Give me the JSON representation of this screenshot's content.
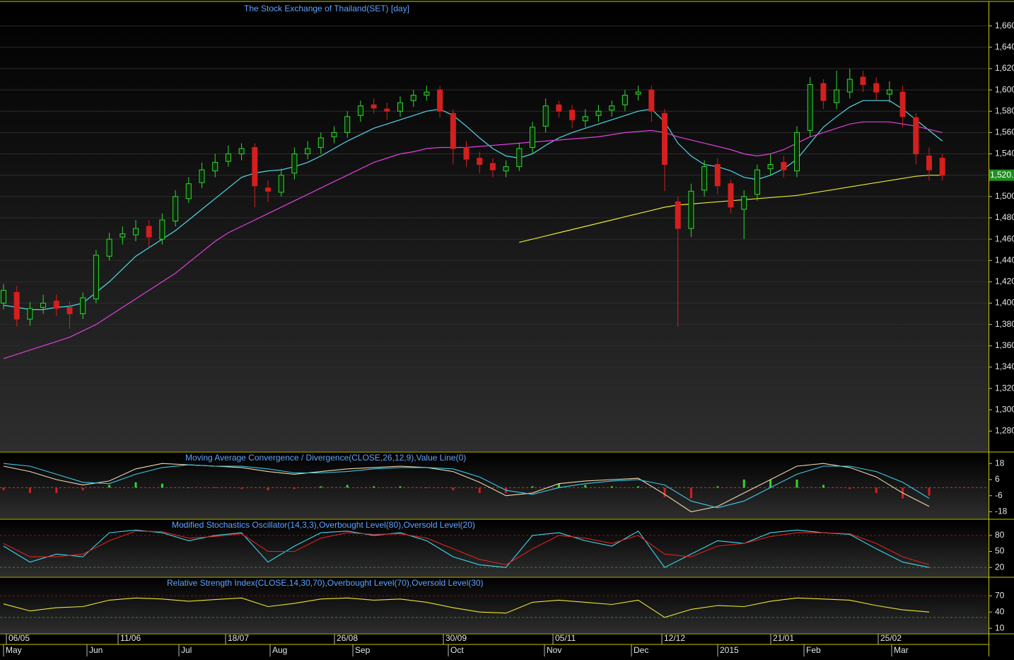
{
  "chart_data": [
    {
      "type": "candlestick",
      "title": "The Stock Exchange of Thailand(SET) [day]",
      "open": [
        1400,
        1410,
        1385,
        1396,
        1402,
        1396,
        1390,
        1404,
        1444,
        1462,
        1464,
        1472,
        1460,
        1477,
        1498,
        1513,
        1524,
        1533,
        1540,
        1546,
        1508,
        1504,
        1522,
        1540,
        1546,
        1556,
        1560,
        1576,
        1586,
        1582,
        1580,
        1590,
        1595,
        1600,
        1578,
        1546,
        1536,
        1531,
        1524,
        1528,
        1546,
        1566,
        1586,
        1581,
        1571,
        1576,
        1581,
        1586,
        1596,
        1600,
        1578,
        1495,
        1470,
        1506,
        1530,
        1512,
        1488,
        1502,
        1526,
        1532,
        1524,
        1562,
        1606,
        1588,
        1598,
        1612,
        1606,
        1596,
        1598,
        1574,
        1538,
        1536
      ],
      "high": [
        1418,
        1416,
        1401,
        1408,
        1408,
        1402,
        1410,
        1450,
        1466,
        1472,
        1478,
        1478,
        1484,
        1506,
        1518,
        1532,
        1540,
        1548,
        1550,
        1550,
        1515,
        1526,
        1546,
        1552,
        1560,
        1566,
        1580,
        1590,
        1592,
        1588,
        1594,
        1600,
        1604,
        1604,
        1582,
        1552,
        1542,
        1536,
        1534,
        1550,
        1570,
        1592,
        1590,
        1586,
        1582,
        1586,
        1590,
        1600,
        1604,
        1604,
        1582,
        1500,
        1512,
        1534,
        1536,
        1516,
        1506,
        1530,
        1540,
        1538,
        1566,
        1612,
        1610,
        1618,
        1620,
        1618,
        1612,
        1608,
        1604,
        1578,
        1546,
        1540
      ],
      "low": [
        1394,
        1378,
        1379,
        1390,
        1388,
        1376,
        1385,
        1400,
        1440,
        1455,
        1458,
        1452,
        1455,
        1472,
        1494,
        1508,
        1518,
        1528,
        1534,
        1490,
        1495,
        1500,
        1516,
        1535,
        1540,
        1550,
        1555,
        1570,
        1578,
        1572,
        1575,
        1584,
        1590,
        1574,
        1530,
        1528,
        1522,
        1518,
        1518,
        1524,
        1540,
        1560,
        1574,
        1564,
        1565,
        1570,
        1575,
        1580,
        1590,
        1570,
        1505,
        1378,
        1462,
        1500,
        1502,
        1484,
        1460,
        1496,
        1520,
        1518,
        1518,
        1556,
        1582,
        1582,
        1592,
        1598,
        1590,
        1588,
        1565,
        1530,
        1515,
        1515
      ],
      "close": [
        1412,
        1385,
        1395,
        1400,
        1395,
        1390,
        1405,
        1445,
        1460,
        1465,
        1470,
        1462,
        1478,
        1500,
        1512,
        1525,
        1532,
        1540,
        1545,
        1510,
        1505,
        1520,
        1540,
        1545,
        1555,
        1560,
        1575,
        1585,
        1583,
        1580,
        1588,
        1595,
        1598,
        1580,
        1545,
        1535,
        1530,
        1525,
        1528,
        1545,
        1565,
        1585,
        1580,
        1572,
        1575,
        1580,
        1585,
        1595,
        1598,
        1580,
        1530,
        1470,
        1505,
        1528,
        1510,
        1490,
        1500,
        1525,
        1530,
        1525,
        1560,
        1605,
        1590,
        1600,
        1610,
        1605,
        1598,
        1600,
        1575,
        1540,
        1525,
        1520
      ],
      "up_color": "#33d633",
      "down_color": "#d41f1f",
      "moving_averages": [
        {
          "color": "#4fd8e8",
          "values": [
            1398,
            1396,
            1394,
            1394,
            1396,
            1397,
            1400,
            1410,
            1420,
            1432,
            1444,
            1452,
            1460,
            1468,
            1478,
            1488,
            1498,
            1508,
            1518,
            1522,
            1524,
            1525,
            1528,
            1532,
            1538,
            1545,
            1552,
            1558,
            1564,
            1568,
            1572,
            1576,
            1580,
            1582,
            1576,
            1566,
            1555,
            1545,
            1538,
            1536,
            1540,
            1548,
            1555,
            1560,
            1564,
            1568,
            1572,
            1576,
            1580,
            1582,
            1570,
            1550,
            1538,
            1530,
            1528,
            1524,
            1518,
            1516,
            1520,
            1526,
            1535,
            1550,
            1565,
            1575,
            1584,
            1590,
            1590,
            1590,
            1582,
            1572,
            1562,
            1552
          ]
        },
        {
          "color": "#e040e0",
          "values": [
            1348,
            1352,
            1356,
            1360,
            1364,
            1368,
            1374,
            1380,
            1388,
            1396,
            1404,
            1412,
            1420,
            1428,
            1438,
            1448,
            1458,
            1466,
            1472,
            1478,
            1484,
            1490,
            1496,
            1502,
            1508,
            1514,
            1520,
            1526,
            1532,
            1536,
            1540,
            1542,
            1545,
            1546,
            1546,
            1546,
            1547,
            1548,
            1549,
            1550,
            1551,
            1552,
            1553,
            1554,
            1555,
            1556,
            1558,
            1560,
            1561,
            1562,
            1560,
            1556,
            1553,
            1550,
            1547,
            1544,
            1540,
            1538,
            1540,
            1544,
            1550,
            1556,
            1560,
            1564,
            1568,
            1570,
            1570,
            1570,
            1568,
            1566,
            1563,
            1560
          ]
        },
        {
          "color": "#e8e830",
          "values": [
            null,
            null,
            null,
            null,
            null,
            null,
            null,
            null,
            null,
            null,
            null,
            null,
            null,
            null,
            null,
            null,
            null,
            null,
            null,
            null,
            null,
            null,
            null,
            null,
            null,
            null,
            null,
            null,
            null,
            null,
            null,
            null,
            null,
            null,
            null,
            null,
            null,
            null,
            null,
            1457,
            1460,
            1463,
            1466,
            1469,
            1472,
            1475,
            1478,
            1481,
            1484,
            1487,
            1490,
            1492,
            1493,
            1494,
            1495,
            1496,
            1497,
            1498,
            1499,
            1500,
            1501,
            1503,
            1505,
            1507,
            1509,
            1511,
            1513,
            1515,
            1517,
            1519,
            1520,
            1520
          ]
        }
      ],
      "last_price": {
        "value": 1520,
        "label": "1,520."
      },
      "ylim": [
        1261,
        1683
      ],
      "yticks": [
        {
          "value": 1280,
          "label": "1,280"
        },
        {
          "value": 1300,
          "label": "1,300"
        },
        {
          "value": 1320,
          "label": "1,320"
        },
        {
          "value": 1340,
          "label": "1,340"
        },
        {
          "value": 1360,
          "label": "1,360"
        },
        {
          "value": 1380,
          "label": "1,380"
        },
        {
          "value": 1400,
          "label": "1,400"
        },
        {
          "value": 1420,
          "label": "1,420"
        },
        {
          "value": 1440,
          "label": "1,440"
        },
        {
          "value": 1460,
          "label": "1,460"
        },
        {
          "value": 1480,
          "label": "1,480"
        },
        {
          "value": 1500,
          "label": "1,500"
        },
        {
          "value": 1520,
          "label": "1,520"
        },
        {
          "value": 1540,
          "label": "1,540"
        },
        {
          "value": 1560,
          "label": "1,560"
        },
        {
          "value": 1580,
          "label": "1,580"
        },
        {
          "value": 1600,
          "label": "1,600"
        },
        {
          "value": 1620,
          "label": "1,620"
        },
        {
          "value": 1640,
          "label": "1,640"
        },
        {
          "value": 1660,
          "label": "1,660"
        }
      ],
      "grid": true
    },
    {
      "type": "macd",
      "title": "Moving Average Convergence / Divergence(CLOSE,26,12,9),Value Line(0)",
      "series": [
        {
          "color": "#f0d8b0",
          "values": [
            16,
            12,
            6,
            2,
            5,
            14,
            18,
            17,
            16,
            15,
            12,
            10,
            12,
            14,
            15,
            16,
            15,
            12,
            4,
            -6,
            -4,
            3,
            5,
            6,
            7,
            -5,
            -18,
            -14,
            -4,
            6,
            16,
            18,
            15,
            8,
            -4,
            -14
          ]
        },
        {
          "color": "#3cc8e8",
          "values": [
            18,
            16,
            10,
            4,
            3,
            10,
            15,
            17,
            16,
            16,
            14,
            11,
            11,
            12,
            14,
            15,
            15,
            14,
            8,
            -2,
            -5,
            0,
            3,
            5,
            6,
            2,
            -10,
            -15,
            -10,
            0,
            10,
            16,
            16,
            12,
            4,
            -8
          ]
        }
      ],
      "histogram": {
        "up_color": "#33d633",
        "down_color": "#d41f1f",
        "values": [
          -2,
          -4,
          -4,
          -2,
          2,
          4,
          3,
          0,
          0,
          -1,
          -2,
          -1,
          1,
          2,
          1,
          1,
          0,
          -2,
          -4,
          -4,
          1,
          3,
          2,
          1,
          1,
          -7,
          -8,
          1,
          6,
          6,
          6,
          2,
          -1,
          -4,
          -8,
          -6
        ]
      },
      "levels": [
        0
      ],
      "ylim": [
        -23,
        26
      ],
      "yticks": [
        18,
        6,
        -6,
        -18
      ]
    },
    {
      "type": "oscillator",
      "title": "Modified Stochastics Oscillator(14,3,3),Overbought Level(80),Oversold Level(20)",
      "series": [
        {
          "color": "#3cd8f0",
          "values": [
            60,
            30,
            45,
            40,
            85,
            90,
            85,
            70,
            80,
            85,
            30,
            60,
            85,
            88,
            80,
            85,
            70,
            40,
            25,
            20,
            80,
            85,
            70,
            60,
            88,
            20,
            45,
            70,
            65,
            85,
            90,
            85,
            82,
            55,
            30,
            20
          ]
        },
        {
          "color": "#e02020",
          "values": [
            65,
            40,
            40,
            45,
            70,
            88,
            87,
            75,
            78,
            83,
            50,
            50,
            75,
            85,
            82,
            83,
            75,
            55,
            35,
            25,
            55,
            80,
            75,
            65,
            80,
            45,
            40,
            60,
            65,
            78,
            85,
            85,
            83,
            65,
            40,
            25
          ]
        }
      ],
      "levels": [
        80,
        20
      ],
      "ylim": [
        3,
        109
      ],
      "yticks": [
        80,
        50,
        20
      ]
    },
    {
      "type": "oscillator",
      "title": "Relative Strength Index(CLOSE,14,30,70),Overbought Level(70),Oversold Level(30)",
      "series": [
        {
          "color": "#e8e830",
          "values": [
            55,
            42,
            48,
            50,
            62,
            66,
            64,
            60,
            63,
            66,
            50,
            56,
            64,
            66,
            62,
            64,
            58,
            48,
            40,
            38,
            58,
            62,
            58,
            54,
            62,
            30,
            45,
            52,
            50,
            60,
            66,
            64,
            62,
            52,
            44,
            40
          ]
        }
      ],
      "levels": [
        70,
        30
      ],
      "ylim": [
        1,
        103
      ],
      "yticks": [
        70,
        40,
        10
      ]
    }
  ],
  "x_axis": {
    "dates": [
      "06/05",
      "11/06",
      "18/07",
      "26/08",
      "30/09",
      "05/11",
      "12/12",
      "21/01",
      "25/02"
    ],
    "months": [
      "May",
      "Jun",
      "Jul",
      "Aug",
      "Sep",
      "Oct",
      "Nov",
      "Dec",
      "2015",
      "Feb",
      "Mar"
    ]
  }
}
